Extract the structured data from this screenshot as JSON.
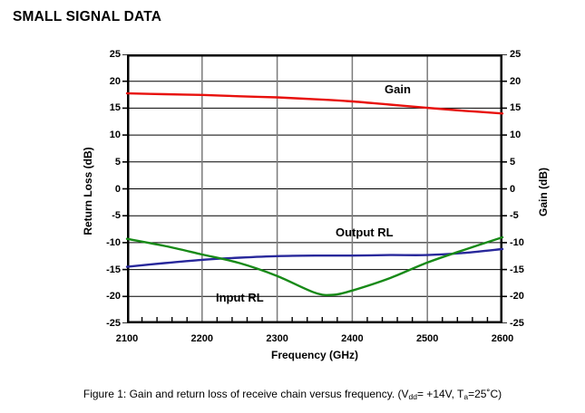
{
  "page": {
    "title": "SMALL SIGNAL DATA"
  },
  "caption": {
    "part1": "Figure 1: Gain and return loss of receive chain versus frequency. (V",
    "sub1": "dd",
    "part2": "= +14V, T",
    "sub2": "a",
    "part3": "=25˚C)"
  },
  "chart_data": {
    "type": "line",
    "xlabel": "Frequency (GHz)",
    "ylabel_left": "Return Loss (dB)",
    "ylabel_right": "Gain (dB)",
    "xlim": [
      2100,
      2600
    ],
    "ylim": [
      -25,
      25
    ],
    "x_ticks": [
      2100,
      2200,
      2300,
      2400,
      2500,
      2600
    ],
    "y_ticks": [
      25,
      20,
      15,
      10,
      5,
      0,
      -5,
      -10,
      -15,
      -20,
      -25
    ],
    "minor_x_tick_step": 20,
    "grid": {
      "horizontal": true,
      "vertical": true,
      "h_color": "#000000",
      "v_color": "#7b7b7b"
    },
    "frame_color": "#000000",
    "series": [
      {
        "name": "Output RL",
        "axis": "left",
        "color": "#28289b",
        "points": [
          [
            2100,
            -14.5
          ],
          [
            2150,
            -13.8
          ],
          [
            2200,
            -13.2
          ],
          [
            2250,
            -12.8
          ],
          [
            2300,
            -12.5
          ],
          [
            2350,
            -12.4
          ],
          [
            2400,
            -12.4
          ],
          [
            2450,
            -12.3
          ],
          [
            2500,
            -12.3
          ],
          [
            2550,
            -11.9
          ],
          [
            2600,
            -11.2
          ]
        ]
      },
      {
        "name": "Input RL",
        "axis": "left",
        "color": "#178a17",
        "points": [
          [
            2100,
            -9.3
          ],
          [
            2150,
            -10.6
          ],
          [
            2200,
            -12.2
          ],
          [
            2250,
            -13.8
          ],
          [
            2300,
            -16.2
          ],
          [
            2350,
            -19.3
          ],
          [
            2375,
            -19.7
          ],
          [
            2400,
            -18.9
          ],
          [
            2450,
            -16.6
          ],
          [
            2500,
            -13.7
          ],
          [
            2550,
            -11.3
          ],
          [
            2600,
            -9.0
          ]
        ]
      },
      {
        "name": "Gain",
        "axis": "right",
        "color": "#e8100c",
        "points": [
          [
            2100,
            17.75
          ],
          [
            2150,
            17.6
          ],
          [
            2200,
            17.45
          ],
          [
            2250,
            17.2
          ],
          [
            2300,
            17.0
          ],
          [
            2350,
            16.65
          ],
          [
            2400,
            16.25
          ],
          [
            2450,
            15.65
          ],
          [
            2500,
            15.05
          ],
          [
            2550,
            14.5
          ],
          [
            2600,
            14.0
          ]
        ]
      }
    ]
  }
}
